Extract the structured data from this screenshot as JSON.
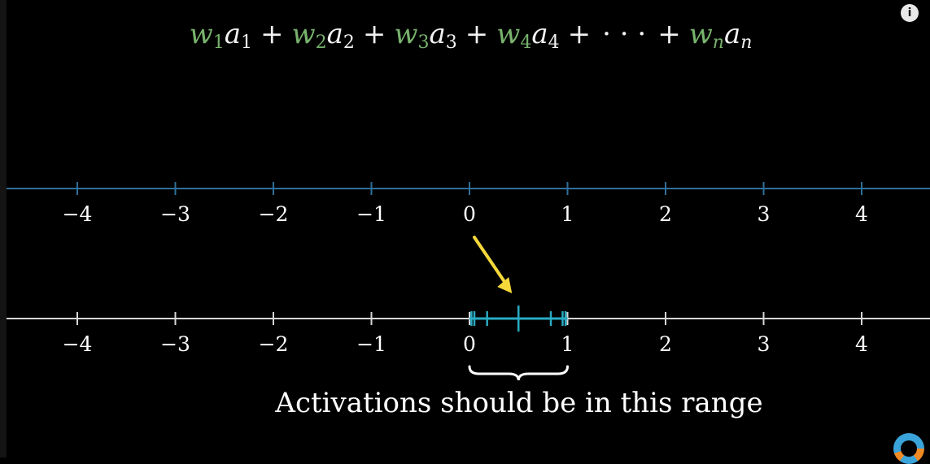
{
  "formula": {
    "terms": [
      {
        "w": "w",
        "wsub": "1",
        "a": "a",
        "asub": "1"
      },
      {
        "w": "w",
        "wsub": "2",
        "a": "a",
        "asub": "2"
      },
      {
        "w": "w",
        "wsub": "3",
        "a": "a",
        "asub": "3"
      },
      {
        "w": "w",
        "wsub": "4",
        "a": "a",
        "asub": "4"
      }
    ],
    "plus": "+",
    "ellipsis": "· · ·",
    "last": {
      "w": "w",
      "wsub": "n",
      "a": "a",
      "asub": "n"
    }
  },
  "top_line": {
    "tick_labels": [
      "−4",
      "−3",
      "−2",
      "−1",
      "0",
      "1",
      "2",
      "3",
      "4"
    ],
    "color": "#2f6f9a"
  },
  "bottom_line": {
    "tick_labels": [
      "−4",
      "−3",
      "−2",
      "−1",
      "0",
      "1",
      "2",
      "3",
      "4"
    ],
    "color": "#d6d6d6",
    "range_color": "#29abc4",
    "activation_values": [
      0.02,
      0.05,
      0.18,
      0.5,
      0.83,
      0.95,
      0.98
    ],
    "highlight_value": 0.5
  },
  "arrow_color": "#f5d83a",
  "caption": "Activations should be in this range",
  "info_icon": "i"
}
